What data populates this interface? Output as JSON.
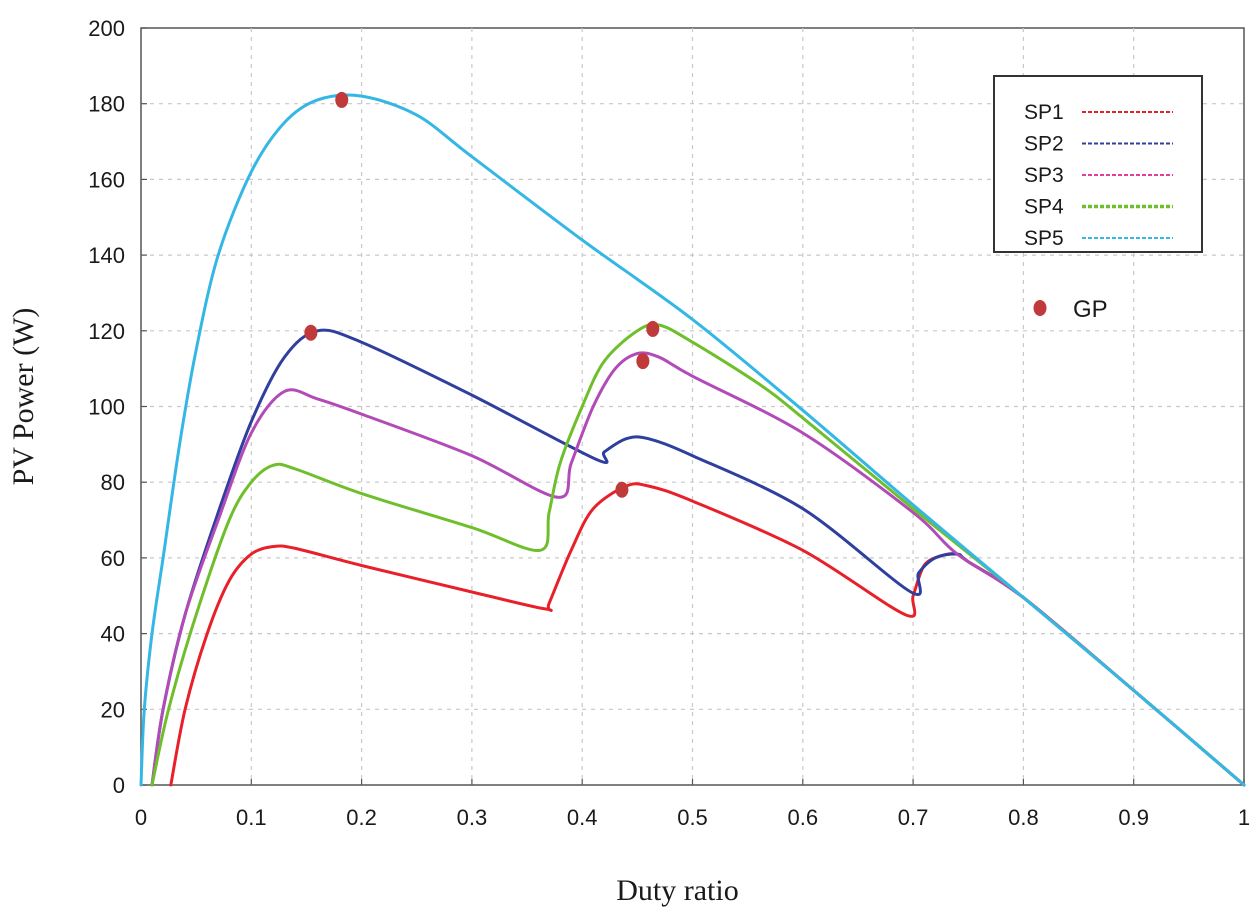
{
  "chart_data": {
    "type": "line",
    "title": "",
    "xlabel": "Duty ratio",
    "ylabel": "PV  Power (W)",
    "xlim": [
      0,
      1
    ],
    "ylim": [
      0,
      200
    ],
    "grid": true,
    "legend_position": "top-right",
    "x_ticks": [
      "0",
      "0.1",
      "0.2",
      "0.3",
      "0.4",
      "0.5",
      "0.6",
      "0.7",
      "0.8",
      "0.9",
      "1"
    ],
    "y_ticks": [
      "0",
      "20",
      "40",
      "60",
      "80",
      "100",
      "120",
      "140",
      "160",
      "180",
      "200"
    ],
    "series": [
      {
        "name": "SP1",
        "color": "#e8202a",
        "legend_color": "#e8202a",
        "points": [
          [
            0.027,
            0
          ],
          [
            0.04,
            20
          ],
          [
            0.06,
            40
          ],
          [
            0.08,
            54
          ],
          [
            0.1,
            61
          ],
          [
            0.12,
            63
          ],
          [
            0.14,
            62.5
          ],
          [
            0.2,
            58
          ],
          [
            0.3,
            51
          ],
          [
            0.367,
            46.5
          ],
          [
            0.37,
            48
          ],
          [
            0.39,
            62
          ],
          [
            0.41,
            73
          ],
          [
            0.44,
            79
          ],
          [
            0.46,
            79
          ],
          [
            0.5,
            75
          ],
          [
            0.6,
            62
          ],
          [
            0.693,
            45
          ],
          [
            0.7,
            50
          ],
          [
            0.71,
            58
          ],
          [
            0.725,
            60.5
          ],
          [
            0.74,
            61
          ],
          [
            0.75,
            59
          ],
          [
            0.8,
            49.5
          ],
          [
            0.9,
            25
          ],
          [
            1.0,
            0
          ]
        ]
      },
      {
        "name": "SP2",
        "color": "#2e3f9e",
        "legend_color": "#2e3f9e",
        "points": [
          [
            0.01,
            0
          ],
          [
            0.02,
            20
          ],
          [
            0.04,
            45
          ],
          [
            0.07,
            72
          ],
          [
            0.1,
            96
          ],
          [
            0.13,
            113
          ],
          [
            0.16,
            120
          ],
          [
            0.2,
            117
          ],
          [
            0.3,
            103
          ],
          [
            0.413,
            86
          ],
          [
            0.42,
            88
          ],
          [
            0.44,
            91.5
          ],
          [
            0.46,
            91.5
          ],
          [
            0.5,
            87
          ],
          [
            0.6,
            73
          ],
          [
            0.698,
            51
          ],
          [
            0.705,
            56
          ],
          [
            0.72,
            60
          ],
          [
            0.74,
            61
          ],
          [
            0.75,
            59
          ],
          [
            0.8,
            49.5
          ],
          [
            0.9,
            25
          ],
          [
            1.0,
            0
          ]
        ]
      },
      {
        "name": "SP3",
        "color": "#b24ab8",
        "legend_color": "#e0409a",
        "points": [
          [
            0.01,
            0
          ],
          [
            0.02,
            20
          ],
          [
            0.04,
            45
          ],
          [
            0.07,
            70
          ],
          [
            0.1,
            93
          ],
          [
            0.13,
            104
          ],
          [
            0.16,
            102
          ],
          [
            0.2,
            98
          ],
          [
            0.3,
            87
          ],
          [
            0.378,
            76
          ],
          [
            0.39,
            85
          ],
          [
            0.41,
            100
          ],
          [
            0.43,
            110
          ],
          [
            0.45,
            114
          ],
          [
            0.47,
            113
          ],
          [
            0.5,
            108
          ],
          [
            0.6,
            93
          ],
          [
            0.7,
            72
          ],
          [
            0.74,
            61
          ],
          [
            0.8,
            49.5
          ],
          [
            0.9,
            25
          ],
          [
            1.0,
            0
          ]
        ]
      },
      {
        "name": "SP4",
        "color": "#6fbf2c",
        "legend_color": "#6fbf2c",
        "points": [
          [
            0.01,
            0
          ],
          [
            0.025,
            20
          ],
          [
            0.05,
            45
          ],
          [
            0.08,
            70
          ],
          [
            0.1,
            80
          ],
          [
            0.12,
            84.5
          ],
          [
            0.14,
            83.5
          ],
          [
            0.2,
            77
          ],
          [
            0.3,
            68
          ],
          [
            0.362,
            62
          ],
          [
            0.37,
            72
          ],
          [
            0.38,
            85
          ],
          [
            0.4,
            100
          ],
          [
            0.42,
            112
          ],
          [
            0.45,
            120
          ],
          [
            0.47,
            121.5
          ],
          [
            0.5,
            117
          ],
          [
            0.56,
            106
          ],
          [
            0.6,
            97
          ],
          [
            0.7,
            73
          ],
          [
            0.8,
            49.5
          ],
          [
            0.9,
            25
          ],
          [
            1.0,
            0
          ]
        ]
      },
      {
        "name": "SP5",
        "color": "#35b7e6",
        "legend_color": "#35b7e6",
        "points": [
          [
            0.0,
            0
          ],
          [
            0.003,
            20
          ],
          [
            0.01,
            40
          ],
          [
            0.02,
            60
          ],
          [
            0.035,
            90
          ],
          [
            0.05,
            115
          ],
          [
            0.07,
            140
          ],
          [
            0.1,
            162
          ],
          [
            0.13,
            175
          ],
          [
            0.16,
            181
          ],
          [
            0.2,
            182
          ],
          [
            0.25,
            177
          ],
          [
            0.3,
            166
          ],
          [
            0.4,
            144
          ],
          [
            0.5,
            123
          ],
          [
            0.6,
            99
          ],
          [
            0.7,
            74
          ],
          [
            0.8,
            49.5
          ],
          [
            0.9,
            25
          ],
          [
            1.0,
            0
          ]
        ]
      }
    ],
    "global_peaks": {
      "name": "GP",
      "color": "#c0393b",
      "points": [
        [
          0.182,
          181
        ],
        [
          0.154,
          119.5
        ],
        [
          0.464,
          120.5
        ],
        [
          0.455,
          112
        ],
        [
          0.436,
          78
        ]
      ]
    }
  }
}
